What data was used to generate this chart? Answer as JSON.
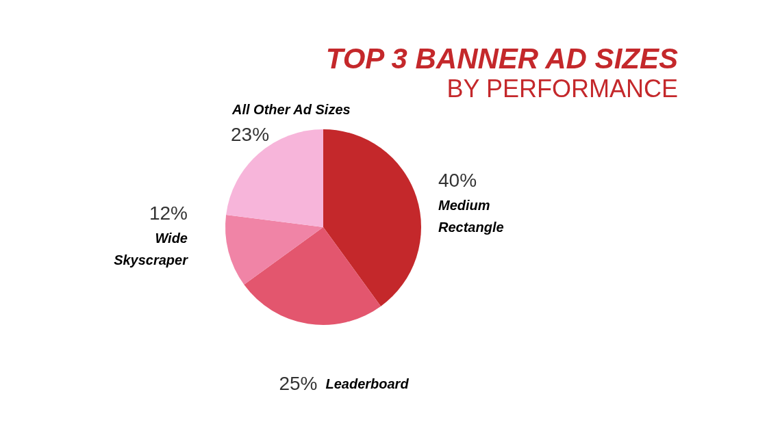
{
  "chart_data": {
    "type": "pie",
    "title": "TOP 3 BANNER AD SIZES",
    "subtitle": "BY PERFORMANCE",
    "categories": [
      "Medium Rectangle",
      "Leaderboard",
      "Wide Skyscraper",
      "All Other Ad Sizes"
    ],
    "values": [
      40,
      25,
      12,
      23
    ],
    "value_labels": [
      "40%",
      "25%",
      "12%",
      "23%"
    ],
    "colors": [
      "#c4282b",
      "#e3566e",
      "#f084a6",
      "#f7b5da"
    ],
    "legend": false
  }
}
